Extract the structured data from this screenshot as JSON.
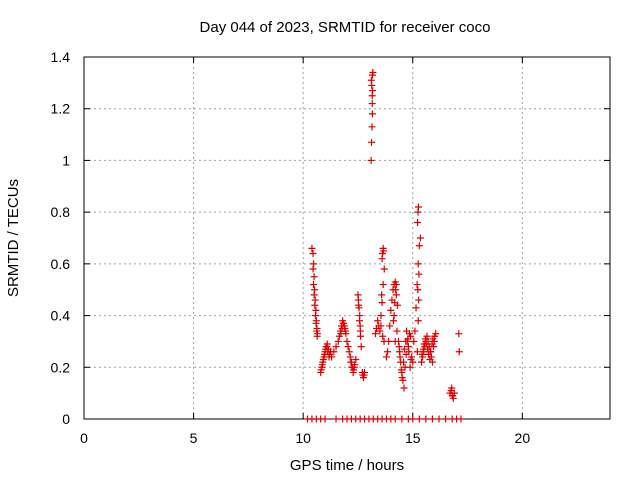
{
  "chart_data": {
    "type": "scatter",
    "title": "Day 044 of 2023, SRMTID for receiver coco",
    "xlabel": "GPS time / hours",
    "ylabel": "SRMTID / TECUs",
    "xlim": [
      0,
      24
    ],
    "ylim": [
      0,
      1.4
    ],
    "xticks": [
      0,
      5,
      10,
      15,
      20
    ],
    "yticks": [
      0,
      0.2,
      0.4,
      0.6,
      0.8,
      1,
      1.2,
      1.4
    ],
    "ytick_labels": [
      "0",
      "0.2",
      "0.4",
      "0.6",
      "0.8",
      "1",
      "1.2",
      "1.4"
    ],
    "grid": true,
    "marker": "plus",
    "color": "#e00000",
    "series": [
      {
        "name": "SRMTID",
        "x": [
          10.4,
          10.45,
          10.48,
          10.5,
          10.52,
          10.55,
          10.58,
          10.6,
          10.63,
          10.65,
          10.45,
          10.47,
          10.5,
          10.53,
          10.56,
          10.59,
          10.62,
          10.64,
          10.8,
          10.85,
          10.9,
          10.95,
          11.0,
          11.05,
          11.1,
          11.15,
          11.2,
          11.25,
          10.82,
          10.88,
          10.92,
          10.98,
          11.02,
          11.08,
          11.12,
          11.18,
          11.3,
          11.4,
          11.5,
          11.6,
          11.65,
          11.7,
          11.75,
          11.8,
          11.85,
          11.9,
          11.95,
          12.0,
          12.05,
          12.1,
          11.72,
          11.78,
          11.83,
          11.88,
          11.93,
          12.15,
          12.2,
          12.25,
          12.3,
          12.35,
          12.4,
          12.18,
          12.22,
          12.28,
          12.33,
          12.5,
          12.52,
          12.55,
          12.58,
          12.6,
          12.62,
          12.65,
          12.53,
          12.57,
          12.61,
          12.7,
          12.72,
          12.75,
          12.78,
          12.8,
          13.1,
          13.12,
          13.14,
          13.16,
          13.15,
          13.17,
          13.13,
          13.11,
          13.16,
          13.18,
          13.15,
          13.3,
          13.35,
          13.4,
          13.45,
          13.5,
          13.55,
          13.6,
          13.65,
          13.7,
          13.6,
          13.62,
          13.65,
          13.67,
          13.58,
          13.55,
          13.63,
          13.69,
          13.8,
          13.85,
          13.9,
          13.95,
          14.0,
          14.05,
          14.1,
          14.15,
          14.2,
          14.25,
          14.3,
          14.15,
          14.18,
          14.22,
          14.25,
          14.12,
          14.2,
          14.28,
          14.35,
          14.4,
          14.45,
          14.5,
          14.55,
          14.6,
          14.65,
          14.7,
          14.75,
          14.8,
          14.85,
          14.9,
          14.95,
          15.0,
          14.38,
          14.42,
          14.48,
          14.52,
          14.58,
          14.62,
          14.68,
          14.72,
          14.78,
          14.82,
          14.88,
          14.92,
          15.05,
          15.1,
          15.15,
          15.2,
          15.25,
          15.3,
          15.35,
          15.22,
          15.24,
          15.26,
          15.28,
          15.23,
          15.27,
          15.25,
          15.21,
          15.4,
          15.45,
          15.5,
          15.55,
          15.6,
          15.65,
          15.7,
          15.75,
          15.8,
          15.85,
          15.9,
          15.95,
          16.0,
          16.05,
          15.42,
          15.48,
          15.52,
          15.58,
          15.62,
          15.68,
          15.72,
          15.78,
          15.82,
          15.88,
          15.92,
          15.98,
          16.7,
          16.75,
          16.8,
          16.85,
          16.9,
          16.78,
          16.82,
          17.1,
          17.12,
          10.2,
          10.4,
          10.6,
          10.8,
          11.0,
          11.5,
          11.8,
          12.0,
          12.2,
          12.4,
          12.6,
          12.8,
          13.0,
          13.2,
          13.4,
          13.6,
          13.8,
          14.0,
          14.2,
          14.5,
          14.8,
          15.0,
          15.3,
          15.6,
          15.9,
          16.2,
          16.5,
          16.8,
          17.0,
          17.2
        ],
        "y": [
          0.66,
          0.64,
          0.6,
          0.55,
          0.5,
          0.46,
          0.42,
          0.38,
          0.35,
          0.33,
          0.58,
          0.52,
          0.48,
          0.44,
          0.4,
          0.37,
          0.34,
          0.32,
          0.18,
          0.2,
          0.22,
          0.24,
          0.26,
          0.28,
          0.29,
          0.27,
          0.25,
          0.26,
          0.19,
          0.21,
          0.23,
          0.25,
          0.27,
          0.28,
          0.26,
          0.24,
          0.24,
          0.26,
          0.28,
          0.3,
          0.32,
          0.34,
          0.36,
          0.38,
          0.37,
          0.35,
          0.33,
          0.3,
          0.28,
          0.26,
          0.33,
          0.35,
          0.37,
          0.36,
          0.34,
          0.24,
          0.22,
          0.2,
          0.19,
          0.21,
          0.23,
          0.22,
          0.2,
          0.18,
          0.2,
          0.48,
          0.46,
          0.43,
          0.4,
          0.36,
          0.32,
          0.28,
          0.44,
          0.38,
          0.34,
          0.18,
          0.17,
          0.16,
          0.17,
          0.18,
          1.0,
          1.07,
          1.13,
          1.18,
          1.22,
          1.27,
          1.29,
          1.31,
          1.33,
          1.34,
          1.25,
          0.33,
          0.35,
          0.38,
          0.36,
          0.34,
          0.4,
          0.45,
          0.52,
          0.58,
          0.62,
          0.64,
          0.66,
          0.65,
          0.48,
          0.36,
          0.32,
          0.3,
          0.24,
          0.26,
          0.3,
          0.36,
          0.42,
          0.46,
          0.5,
          0.52,
          0.53,
          0.48,
          0.44,
          0.4,
          0.45,
          0.5,
          0.52,
          0.38,
          0.3,
          0.34,
          0.3,
          0.26,
          0.22,
          0.18,
          0.15,
          0.12,
          0.2,
          0.25,
          0.3,
          0.28,
          0.33,
          0.32,
          0.24,
          0.22,
          0.28,
          0.24,
          0.19,
          0.16,
          0.22,
          0.27,
          0.3,
          0.34,
          0.31,
          0.26,
          0.2,
          0.23,
          0.3,
          0.34,
          0.43,
          0.52,
          0.6,
          0.67,
          0.7,
          0.76,
          0.8,
          0.82,
          0.56,
          0.5,
          0.46,
          0.38,
          0.26,
          0.22,
          0.24,
          0.26,
          0.28,
          0.3,
          0.32,
          0.3,
          0.28,
          0.26,
          0.24,
          0.22,
          0.28,
          0.32,
          0.33,
          0.25,
          0.27,
          0.29,
          0.31,
          0.29,
          0.27,
          0.25,
          0.23,
          0.26,
          0.29,
          0.31,
          0.3,
          0.1,
          0.11,
          0.09,
          0.08,
          0.1,
          0.12,
          0.09,
          0.33,
          0.26,
          0,
          0,
          0,
          0,
          0,
          0,
          0,
          0,
          0,
          0,
          0,
          0,
          0,
          0,
          0,
          0,
          0,
          0,
          0,
          0,
          0,
          0,
          0,
          0,
          0,
          0,
          0,
          0,
          0,
          0
        ]
      }
    ]
  }
}
